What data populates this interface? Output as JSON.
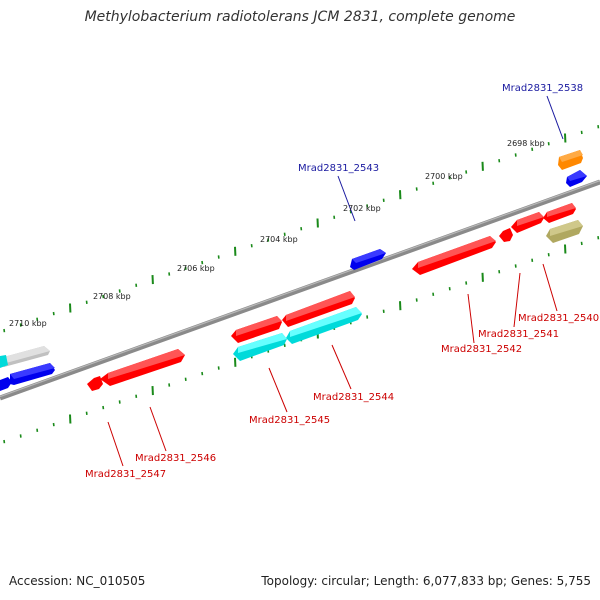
{
  "title": "Methylobacterium radiotolerans JCM 2831, complete genome",
  "footer": {
    "accession": "Accession: NC_010505",
    "summary": "Topology: circular; Length: 6,077,833 bp; Genes: 5,755"
  },
  "colors": {
    "backbone": "#777777",
    "tick": "#1a8a1a",
    "label_blue": "#1a1aa0",
    "label_red": "#cc0000",
    "gene_red": "#ff0000",
    "gene_blue": "#0000ee",
    "gene_cyan": "#00e5e5",
    "gene_orange": "#ff8800",
    "gene_olive": "#b0a860",
    "gene_gray": "#c0c0c0"
  },
  "scale_labels": [
    "2698 kbp",
    "2700 kbp",
    "2702 kbp",
    "2704 kbp",
    "2706 kbp",
    "2708 kbp",
    "2710 kbp"
  ],
  "gene_labels": [
    {
      "text": "Mrad2831_2538",
      "strand": "plus"
    },
    {
      "text": "Mrad2831_2543",
      "strand": "plus"
    },
    {
      "text": "Mrad2831_2540",
      "strand": "minus"
    },
    {
      "text": "Mrad2831_2541",
      "strand": "minus"
    },
    {
      "text": "Mrad2831_2542",
      "strand": "minus"
    },
    {
      "text": "Mrad2831_2544",
      "strand": "minus"
    },
    {
      "text": "Mrad2831_2545",
      "strand": "minus"
    },
    {
      "text": "Mrad2831_2546",
      "strand": "minus"
    },
    {
      "text": "Mrad2831_2547",
      "strand": "minus"
    }
  ]
}
